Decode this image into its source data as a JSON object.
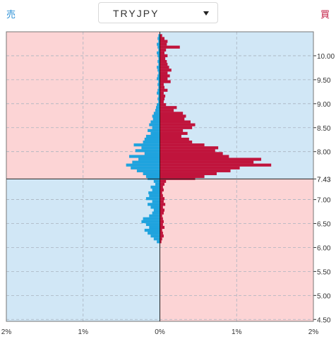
{
  "header": {
    "sell_label": "売",
    "buy_label": "買",
    "pair_selector": {
      "selected": "TRYJPY"
    }
  },
  "colors": {
    "sell_zone": "#fcd4d5",
    "buy_zone": "#d1e7f6",
    "sell_bars": "#1fa3de",
    "buy_bars": "#c0143c",
    "grid": "#a9b3bf"
  },
  "chart_data": {
    "type": "bar",
    "orientation": "horizontal",
    "current_price": 7.43,
    "y_ticks": [
      "10.00",
      "9.50",
      "9.00",
      "8.50",
      "8.00",
      "7.43",
      "7.00",
      "6.50",
      "6.00",
      "5.50",
      "5.00",
      "4.50"
    ],
    "y_range": [
      4.46,
      10.5
    ],
    "x_ticks": [
      "2%",
      "1%",
      "0%",
      "1%",
      "2%"
    ],
    "x_range": [
      -2,
      2
    ],
    "buy_orders": {
      "price": [
        10.42,
        10.36,
        10.3,
        10.24,
        10.18,
        10.12,
        10.06,
        10.0,
        9.94,
        9.88,
        9.82,
        9.76,
        9.7,
        9.64,
        9.58,
        9.52,
        9.46,
        9.4,
        9.34,
        9.28,
        9.22,
        9.16,
        9.1,
        9.04,
        8.98,
        8.92,
        8.86,
        8.8,
        8.74,
        8.68,
        8.62,
        8.56,
        8.5,
        8.44,
        8.38,
        8.32,
        8.26,
        8.2,
        8.14,
        8.08,
        8.02,
        7.96,
        7.9,
        7.84,
        7.78,
        7.72,
        7.66,
        7.6,
        7.54,
        7.48,
        7.44,
        7.38,
        7.32,
        7.26,
        7.2,
        7.14,
        7.08,
        7.02,
        6.96,
        6.9,
        6.84,
        6.78,
        6.72,
        6.66,
        6.6,
        6.54,
        6.48,
        6.42,
        6.36,
        6.3,
        6.24,
        6.18,
        6.12
      ],
      "percent": [
        0.03,
        0.06,
        0.1,
        0.09,
        0.26,
        0.08,
        0.06,
        0.1,
        0.07,
        0.09,
        0.1,
        0.12,
        0.15,
        0.1,
        0.13,
        0.1,
        0.14,
        0.05,
        0.06,
        0.1,
        0.05,
        0.07,
        0.06,
        0.05,
        0.08,
        0.22,
        0.18,
        0.3,
        0.34,
        0.32,
        0.4,
        0.46,
        0.42,
        0.3,
        0.36,
        0.28,
        0.38,
        0.42,
        0.58,
        0.76,
        0.72,
        0.82,
        0.9,
        1.32,
        1.22,
        1.45,
        1.04,
        0.92,
        0.74,
        0.58,
        0.46,
        0.08,
        0.06,
        0.04,
        0.05,
        0.03,
        0.04,
        0.06,
        0.05,
        0.07,
        0.04,
        0.06,
        0.05,
        0.03,
        0.04,
        0.05,
        0.04,
        0.06,
        0.03,
        0.04,
        0.05,
        0.03,
        0.02
      ]
    },
    "sell_orders": {
      "price": [
        10.42,
        10.36,
        10.3,
        10.24,
        10.18,
        10.12,
        10.06,
        10.0,
        9.94,
        9.88,
        9.82,
        9.76,
        9.7,
        9.64,
        9.58,
        9.52,
        9.46,
        9.4,
        9.34,
        9.28,
        9.22,
        9.16,
        9.1,
        9.04,
        8.98,
        8.92,
        8.86,
        8.8,
        8.74,
        8.68,
        8.62,
        8.56,
        8.5,
        8.44,
        8.38,
        8.32,
        8.26,
        8.2,
        8.14,
        8.08,
        8.02,
        7.96,
        7.9,
        7.84,
        7.78,
        7.72,
        7.66,
        7.6,
        7.54,
        7.48,
        7.44,
        7.38,
        7.32,
        7.26,
        7.2,
        7.14,
        7.08,
        7.02,
        6.96,
        6.9,
        6.84,
        6.78,
        6.72,
        6.66,
        6.6,
        6.54,
        6.48,
        6.42,
        6.36,
        6.3,
        6.24,
        6.18,
        6.12
      ],
      "percent": [
        0.02,
        0.03,
        0.02,
        0.04,
        0.03,
        0.02,
        0.04,
        0.03,
        0.02,
        0.03,
        0.02,
        0.04,
        0.03,
        0.02,
        0.03,
        0.04,
        0.02,
        0.03,
        0.02,
        0.03,
        0.04,
        0.02,
        0.03,
        0.02,
        0.04,
        0.05,
        0.06,
        0.08,
        0.1,
        0.09,
        0.12,
        0.14,
        0.1,
        0.16,
        0.12,
        0.18,
        0.2,
        0.22,
        0.34,
        0.24,
        0.32,
        0.2,
        0.4,
        0.28,
        0.36,
        0.44,
        0.38,
        0.3,
        0.22,
        0.18,
        0.16,
        0.08,
        0.06,
        0.12,
        0.1,
        0.15,
        0.14,
        0.18,
        0.1,
        0.16,
        0.12,
        0.08,
        0.1,
        0.14,
        0.22,
        0.24,
        0.18,
        0.14,
        0.2,
        0.16,
        0.12,
        0.08,
        0.04
      ]
    }
  }
}
